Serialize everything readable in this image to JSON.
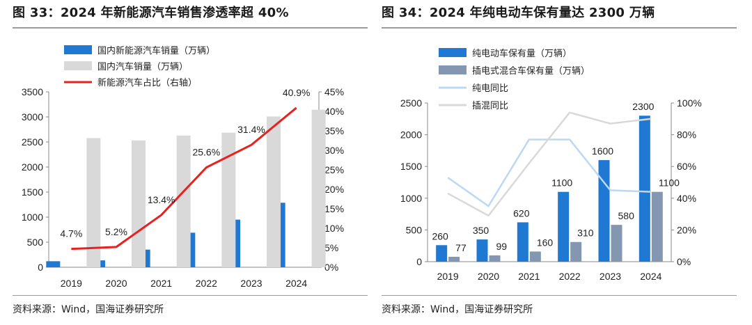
{
  "charts": [
    {
      "title": "图 33：2024 年新能源汽车销售渗透率超 40%",
      "source": "资料来源：Wind，国海证券研究所",
      "chart_data": {
        "type": "bar",
        "categories": [
          "2019",
          "2020",
          "2021",
          "2022",
          "2023",
          "2024"
        ],
        "series": [
          {
            "name": "国内新能源汽车销量（万辆）",
            "kind": "bar",
            "axis": "left",
            "color": "#1f78d1",
            "values": [
              120,
              137,
              352,
              689,
              950,
              1287
            ]
          },
          {
            "name": "国内汽车销量（万辆）",
            "kind": "bar",
            "axis": "left",
            "color": "#d9d9d9",
            "values": [
              2577,
              2531,
              2628,
              2686,
              3009,
              3144
            ]
          },
          {
            "name": "新能源汽车占比（右轴）",
            "kind": "line",
            "axis": "right",
            "color": "#e8211f",
            "values": [
              4.7,
              5.2,
              13.4,
              25.6,
              31.4,
              40.9
            ],
            "labels": [
              "4.7%",
              "5.2%",
              "13.4%",
              "25.6%",
              "31.4%",
              "40.9%"
            ]
          }
        ],
        "y_left": {
          "min": 0,
          "max": 3500,
          "ticks": [
            "0",
            "500",
            "1000",
            "1500",
            "2000",
            "2500",
            "3000",
            "3500"
          ]
        },
        "y_right": {
          "min": 0,
          "max": 45,
          "ticks": [
            "0%",
            "5%",
            "10%",
            "15%",
            "20%",
            "25%",
            "30%",
            "35%",
            "40%",
            "45%"
          ]
        },
        "grid": false,
        "legend": "top-left"
      }
    },
    {
      "title": "图 34：2024 年纯电动车保有量达 2300 万辆",
      "source": "资料来源：Wind，国海证券研究所",
      "chart_data": {
        "type": "bar",
        "categories": [
          "2019",
          "2020",
          "2021",
          "2022",
          "2023",
          "2024"
        ],
        "series": [
          {
            "name": "纯电动车保有量（万辆）",
            "kind": "bar",
            "axis": "left",
            "color": "#1f78d1",
            "values": [
              260,
              350,
              620,
              1100,
              1600,
              2300
            ],
            "labels": [
              "260",
              "350",
              "620",
              "1100",
              "1600",
              "2300"
            ]
          },
          {
            "name": "插电式混合车保有量（万辆）",
            "kind": "bar",
            "axis": "left",
            "color": "#8497b0",
            "values": [
              77,
              99,
              160,
              310,
              580,
              1100
            ],
            "labels": [
              "77",
              "99",
              "160",
              "310",
              "580",
              "1100"
            ]
          },
          {
            "name": "纯电同比",
            "kind": "line",
            "axis": "right",
            "color": "#bcd8f2",
            "values": [
              53,
              35,
              77,
              77,
              45,
              44
            ]
          },
          {
            "name": "插混同比",
            "kind": "line",
            "axis": "right",
            "color": "#d9d9d9",
            "values": [
              43,
              29,
              62,
              94,
              87,
              90
            ]
          }
        ],
        "y_left": {
          "min": 0,
          "max": 2500,
          "ticks": [
            "0",
            "500",
            "1000",
            "1500",
            "2000",
            "2500"
          ]
        },
        "y_right": {
          "min": 0,
          "max": 100,
          "ticks": [
            "0%",
            "20%",
            "40%",
            "60%",
            "80%",
            "100%"
          ]
        },
        "grid": false,
        "legend": "top-left"
      }
    }
  ]
}
